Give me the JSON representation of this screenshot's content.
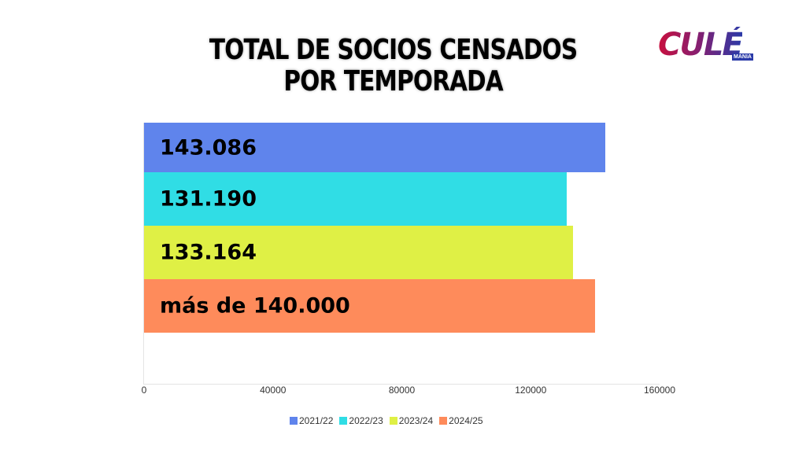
{
  "header": {
    "title_line1": "TOTAL DE SOCIOS CENSADOS",
    "title_line2": "POR TEMPORADA"
  },
  "logo": {
    "text": "CULÉ",
    "sub": "MANIA"
  },
  "chart_data": {
    "type": "bar",
    "orientation": "horizontal",
    "title": "TOTAL DE SOCIOS CENSADOS POR TEMPORADA",
    "categories": [
      "2021/22",
      "2022/23",
      "2023/24",
      "2024/25"
    ],
    "series": [
      {
        "name": "2021/22",
        "values": [
          143086
        ],
        "label": "143.086",
        "color": "#5f84ec"
      },
      {
        "name": "2022/23",
        "values": [
          131190
        ],
        "label": "131.190",
        "color": "#30dde5"
      },
      {
        "name": "2023/24",
        "values": [
          133164
        ],
        "label": "133.164",
        "color": "#dff045"
      },
      {
        "name": "2024/25",
        "values": [
          140000
        ],
        "label": "más de 140.000",
        "color": "#fe8b5b"
      }
    ],
    "xlabel": "",
    "ylabel": "",
    "xlim": [
      0,
      160000
    ],
    "x_ticks": [
      "0",
      "40000",
      "80000",
      "120000",
      "160000"
    ],
    "legend_position": "bottom",
    "grid": false
  }
}
